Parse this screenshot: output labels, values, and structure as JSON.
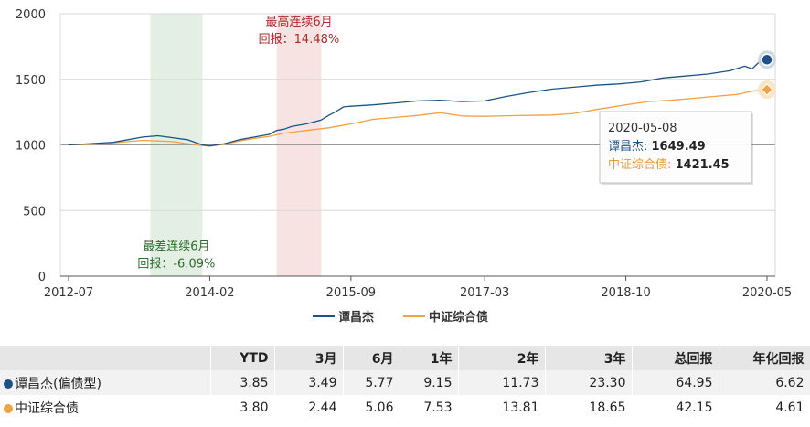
{
  "chart_data": {
    "type": "line",
    "x_ticks": [
      "2012-07",
      "2014-02",
      "2015-09",
      "2017-03",
      "2018-10",
      "2020-05"
    ],
    "y_ticks": [
      0,
      500,
      1000,
      1500,
      2000
    ],
    "ylim": [
      0,
      2000
    ],
    "xlim": [
      "2012-07",
      "2020-05"
    ],
    "grid": "horizontal",
    "legend": {
      "position": "bottom-center"
    },
    "series": [
      {
        "name": "谭昌杰",
        "color": "#1d5286",
        "points": [
          [
            "2012-07",
            1000
          ],
          [
            "2012-10",
            1010
          ],
          [
            "2013-01",
            1020
          ],
          [
            "2013-03",
            1040
          ],
          [
            "2013-05",
            1060
          ],
          [
            "2013-07",
            1070
          ],
          [
            "2013-09",
            1055
          ],
          [
            "2013-11",
            1040
          ],
          [
            "2014-01",
            1000
          ],
          [
            "2014-02",
            992
          ],
          [
            "2014-04",
            1010
          ],
          [
            "2014-06",
            1040
          ],
          [
            "2014-08",
            1060
          ],
          [
            "2014-10",
            1080
          ],
          [
            "2014-11",
            1110
          ],
          [
            "2014-12",
            1120
          ],
          [
            "2015-01",
            1140
          ],
          [
            "2015-03",
            1160
          ],
          [
            "2015-05",
            1190
          ],
          [
            "2015-06",
            1225
          ],
          [
            "2015-07",
            1255
          ],
          [
            "2015-08",
            1290
          ],
          [
            "2015-09",
            1295
          ],
          [
            "2015-12",
            1305
          ],
          [
            "2016-03",
            1320
          ],
          [
            "2016-06",
            1335
          ],
          [
            "2016-09",
            1340
          ],
          [
            "2016-12",
            1330
          ],
          [
            "2017-03",
            1335
          ],
          [
            "2017-06",
            1370
          ],
          [
            "2017-09",
            1400
          ],
          [
            "2017-12",
            1425
          ],
          [
            "2018-03",
            1440
          ],
          [
            "2018-06",
            1455
          ],
          [
            "2018-09",
            1465
          ],
          [
            "2018-10",
            1470
          ],
          [
            "2018-12",
            1480
          ],
          [
            "2019-03",
            1510
          ],
          [
            "2019-06",
            1525
          ],
          [
            "2019-09",
            1540
          ],
          [
            "2019-12",
            1565
          ],
          [
            "2020-02",
            1600
          ],
          [
            "2020-03",
            1580
          ],
          [
            "2020-04",
            1635
          ],
          [
            "2020-05",
            1649.49
          ]
        ]
      },
      {
        "name": "中证综合债",
        "color": "#f0a244",
        "points": [
          [
            "2012-07",
            1000
          ],
          [
            "2012-10",
            1005
          ],
          [
            "2013-01",
            1015
          ],
          [
            "2013-03",
            1025
          ],
          [
            "2013-05",
            1035
          ],
          [
            "2013-07",
            1030
          ],
          [
            "2013-09",
            1025
          ],
          [
            "2013-11",
            1010
          ],
          [
            "2014-01",
            995
          ],
          [
            "2014-02",
            990
          ],
          [
            "2014-04",
            1005
          ],
          [
            "2014-06",
            1030
          ],
          [
            "2014-08",
            1050
          ],
          [
            "2014-10",
            1065
          ],
          [
            "2014-12",
            1090
          ],
          [
            "2015-03",
            1110
          ],
          [
            "2015-06",
            1130
          ],
          [
            "2015-09",
            1160
          ],
          [
            "2015-12",
            1195
          ],
          [
            "2016-03",
            1210
          ],
          [
            "2016-06",
            1225
          ],
          [
            "2016-09",
            1245
          ],
          [
            "2016-12",
            1220
          ],
          [
            "2017-03",
            1218
          ],
          [
            "2017-06",
            1222
          ],
          [
            "2017-09",
            1225
          ],
          [
            "2017-12",
            1228
          ],
          [
            "2018-03",
            1240
          ],
          [
            "2018-06",
            1270
          ],
          [
            "2018-10",
            1305
          ],
          [
            "2019-01",
            1330
          ],
          [
            "2019-04",
            1340
          ],
          [
            "2019-07",
            1355
          ],
          [
            "2019-10",
            1370
          ],
          [
            "2020-01",
            1385
          ],
          [
            "2020-03",
            1410
          ],
          [
            "2020-05",
            1421.45
          ]
        ]
      }
    ],
    "bands": [
      {
        "from": "2013-06",
        "to": "2014-01",
        "color": "#e3efe3",
        "text_color": "#2e6b2e",
        "line1": "最差连续6月",
        "line2": "回报：-6.09%",
        "label_y": 200
      },
      {
        "from": "2014-11",
        "to": "2015-05",
        "color": "#f8e3e3",
        "text_color": "#b02a2a",
        "line1": "最高连续6月",
        "line2": "回报：14.48%",
        "label_y": 1910
      }
    ],
    "tooltip": {
      "date": "2020-05-08",
      "rows": [
        {
          "name": "谭昌杰",
          "value": "1649.49",
          "color": "#1d5286"
        },
        {
          "name": "中证综合债",
          "value": "1421.45",
          "color": "#e89a3c"
        }
      ]
    }
  },
  "table": {
    "columns": [
      "YTD",
      "3月",
      "6月",
      "1年",
      "2年",
      "3年",
      "总回报",
      "年化回报"
    ],
    "rows": [
      {
        "name": "谭昌杰(偏债型)",
        "color": "#1d5286",
        "values": [
          "3.85",
          "3.49",
          "5.77",
          "9.15",
          "11.73",
          "23.30",
          "64.95",
          "6.62"
        ]
      },
      {
        "name": "中证综合债",
        "color": "#f0a244",
        "values": [
          "3.80",
          "2.44",
          "5.06",
          "7.53",
          "13.81",
          "18.65",
          "42.15",
          "4.61"
        ]
      }
    ]
  }
}
